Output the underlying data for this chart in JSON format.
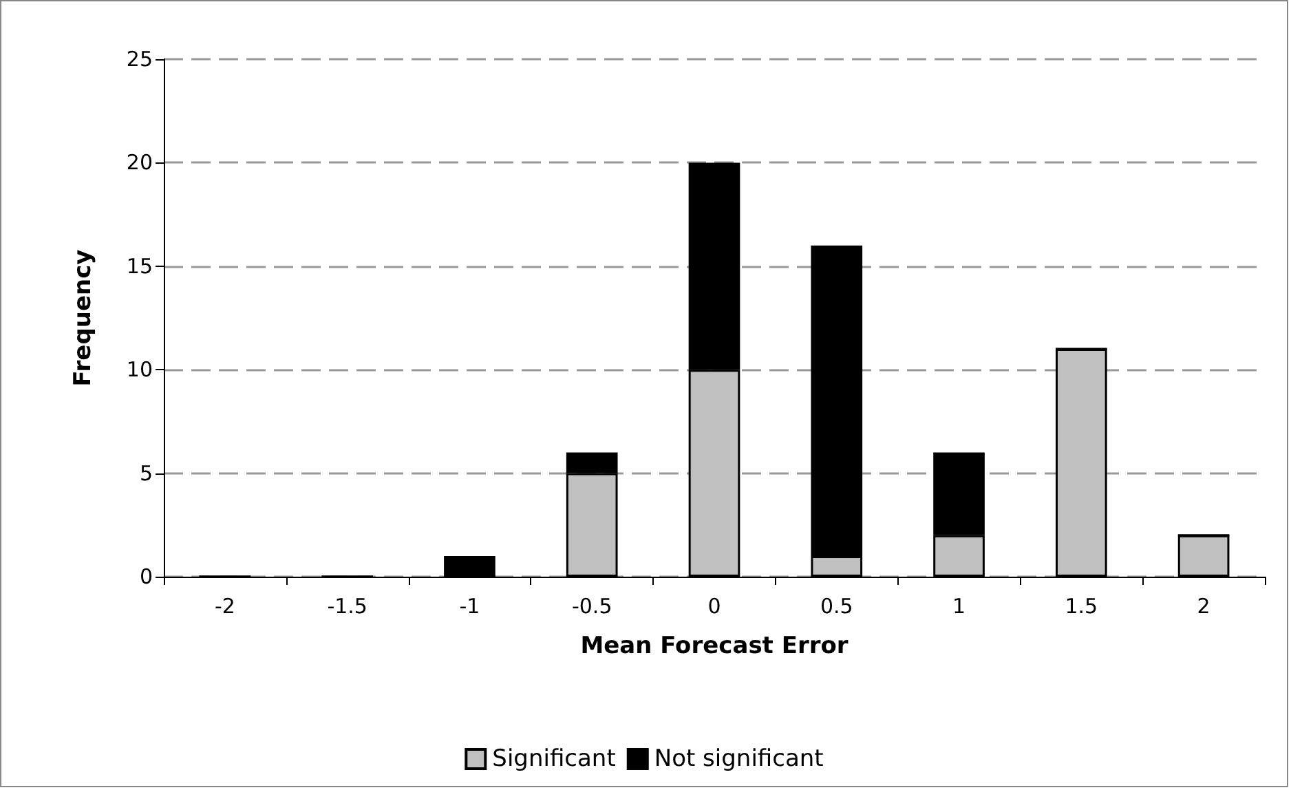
{
  "chart_data": {
    "type": "bar",
    "stacked": true,
    "xlabel": "Mean Forecast Error",
    "ylabel": "Frequency",
    "categories": [
      "-2",
      "-1.5",
      "-1",
      "-0.5",
      "0",
      "0.5",
      "1",
      "1.5",
      "2"
    ],
    "series": [
      {
        "name": "Significant",
        "color": "#c0c0c0",
        "values": [
          0,
          0,
          0,
          5,
          10,
          1,
          2,
          11,
          2
        ]
      },
      {
        "name": "Not significant",
        "color": "#000000",
        "values": [
          0,
          0,
          1,
          1,
          10,
          15,
          4,
          0,
          0
        ]
      }
    ],
    "ylim": [
      0,
      25
    ],
    "yticks": [
      0,
      5,
      10,
      15,
      20,
      25
    ],
    "grid": "y",
    "legend": "bottom"
  }
}
